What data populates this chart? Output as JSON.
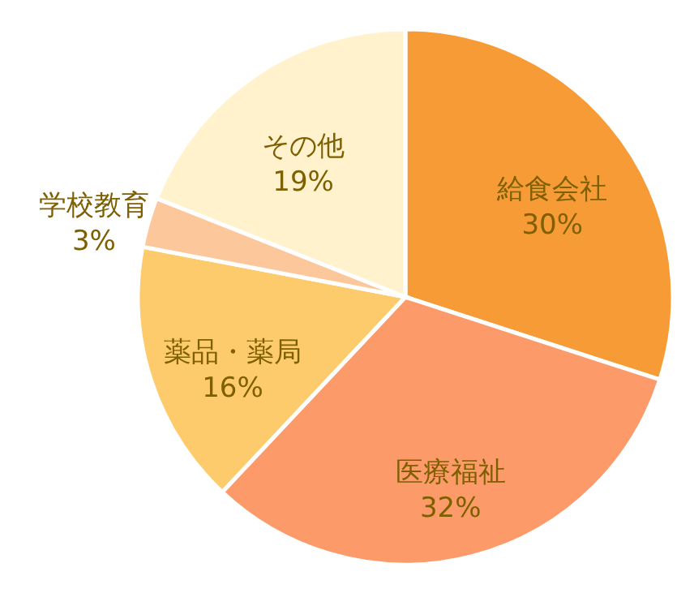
{
  "chart_data": {
    "type": "pie",
    "categories": [
      "給食会社",
      "医療福祉",
      "薬品・薬局",
      "学校教育",
      "その他"
    ],
    "values": [
      30,
      32,
      16,
      3,
      19
    ],
    "value_labels": [
      "30%",
      "32%",
      "16%",
      "3%",
      "19%"
    ],
    "colors": [
      "#f79b36",
      "#fc9b69",
      "#fdcb6b",
      "#fcc89b",
      "#fff2cc"
    ]
  }
}
